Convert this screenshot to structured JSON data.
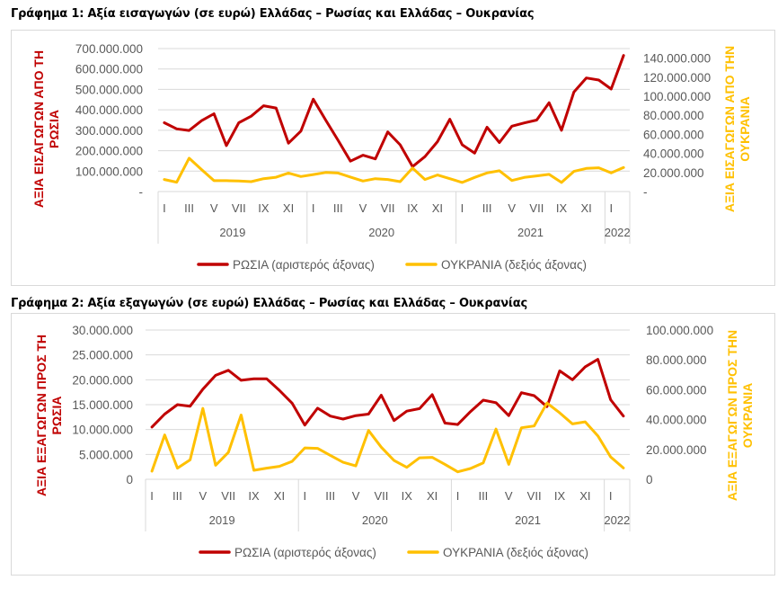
{
  "colors": {
    "russia": "#c00000",
    "ukraine": "#ffc000",
    "grid": "#d9d9d9",
    "text": "#595959"
  },
  "chart_data": [
    {
      "type": "line",
      "title": "Γράφημα 1: Αξία εισαγωγών (σε ευρώ) Ελλάδας – Ρωσίας και Ελλάδας – Ουκρανίας",
      "ylabel_left_lines": [
        "ΑΞΙΑ ΕΙΣΑΓΩΓΩΝ ΑΠΟ ΤΗ",
        "ΡΩΣΙΑ"
      ],
      "ylabel_right_lines": [
        "ΑΞΙΑ ΕΙΣΑΓΩΓΩΝ ΑΠΟ ΤΗΝ",
        "ΟΥΚΡΑΝΙΑ"
      ],
      "ylim_left": [
        0,
        700000000
      ],
      "ylim_right": [
        0,
        150000000
      ],
      "yticks_left": [
        "-",
        "100.000.000",
        "200.000.000",
        "300.000.000",
        "400.000.000",
        "500.000.000",
        "600.000.000",
        "700.000.000"
      ],
      "yticks_right": [
        "-",
        "20.000.000",
        "40.000.000",
        "60.000.000",
        "80.000.000",
        "100.000.000",
        "120.000.000",
        "140.000.000"
      ],
      "yticks_right_values": [
        0,
        20000000,
        40000000,
        60000000,
        80000000,
        100000000,
        120000000,
        140000000
      ],
      "month_labels": [
        "I",
        "",
        "III",
        "",
        "V",
        "",
        "VII",
        "",
        "IX",
        "",
        "XI",
        "",
        "I",
        "",
        "III",
        "",
        "V",
        "",
        "VII",
        "",
        "IX",
        "",
        "XI",
        "",
        "I",
        "",
        "III",
        "",
        "V",
        "",
        "VII",
        "",
        "IX",
        "",
        "XI",
        "",
        "I",
        ""
      ],
      "years": [
        {
          "label": "2019",
          "months": 12
        },
        {
          "label": "2020",
          "months": 12
        },
        {
          "label": "2021",
          "months": 12
        },
        {
          "label": "2022",
          "months": 2
        }
      ],
      "grid": true,
      "legend_position": "bottom",
      "series": [
        {
          "name": "ΡΩΣΙΑ (αριστερός άξονας)",
          "axis": "left",
          "color": "#c00000",
          "values": [
            337000000,
            307000000,
            299000000,
            347000000,
            381000000,
            225000000,
            337000000,
            369000000,
            420000000,
            409000000,
            237000000,
            296000000,
            452000000,
            350000000,
            251000000,
            149000000,
            178000000,
            160000000,
            292000000,
            229000000,
            122000000,
            171000000,
            244000000,
            354000000,
            229000000,
            188000000,
            315000000,
            240000000,
            320000000,
            336000000,
            350000000,
            435000000,
            300000000,
            487000000,
            556000000,
            546000000,
            502000000,
            666000000
          ]
        },
        {
          "name": "ΟΥΚΡΑΝΙΑ (δεξιός άξονας)",
          "axis": "right",
          "color": "#ffc000",
          "values": [
            12600000,
            9800000,
            35000000,
            23000000,
            11400000,
            11400000,
            11000000,
            10400000,
            13500000,
            15000000,
            19400000,
            15800000,
            17800000,
            20000000,
            19400000,
            15200000,
            11000000,
            13500000,
            12600000,
            10400000,
            24600000,
            12600000,
            17400000,
            13500000,
            9500000,
            14800000,
            19500000,
            21800000,
            11600000,
            14800000,
            16400000,
            18000000,
            9500000,
            21100000,
            24200000,
            24900000,
            19500000,
            25200000
          ]
        }
      ]
    },
    {
      "type": "line",
      "title": "Γράφημα 2: Αξία εξαγωγών (σε ευρώ) Ελλάδας – Ρωσίας και Ελλάδας – Ουκρανίας",
      "ylabel_left_lines": [
        "ΑΞΙΑ ΕΞΑΓΩΓΩΝ ΠΡΟΣ ΤΗ",
        "ΡΩΣΙΑ"
      ],
      "ylabel_right_lines": [
        "ΑΞΙΑ ΕΞΑΓΩΓΩΝ ΠΡΟΣ ΤΗΝ",
        "ΟΥΚΡΑΝΙΑ"
      ],
      "ylim_left": [
        0,
        30000000
      ],
      "ylim_right": [
        0,
        100000000
      ],
      "yticks_left": [
        "0",
        "5.000.000",
        "10.000.000",
        "15.000.000",
        "20.000.000",
        "25.000.000",
        "30.000.000"
      ],
      "yticks_right": [
        "0",
        "20.000.000",
        "40.000.000",
        "60.000.000",
        "80.000.000",
        "100.000.000"
      ],
      "yticks_right_values": [
        0,
        20000000,
        40000000,
        60000000,
        80000000,
        100000000
      ],
      "month_labels": [
        "I",
        "",
        "III",
        "",
        "V",
        "",
        "VII",
        "",
        "IX",
        "",
        "XI",
        "",
        "I",
        "",
        "III",
        "",
        "V",
        "",
        "VII",
        "",
        "IX",
        "",
        "XI",
        "",
        "I",
        "",
        "III",
        "",
        "V",
        "",
        "VII",
        "",
        "IX",
        "",
        "XI",
        "",
        "I",
        ""
      ],
      "years": [
        {
          "label": "2019",
          "months": 12
        },
        {
          "label": "2020",
          "months": 12
        },
        {
          "label": "2021",
          "months": 12
        },
        {
          "label": "2022",
          "months": 2
        }
      ],
      "grid": true,
      "legend_position": "bottom",
      "series": [
        {
          "name": "ΡΩΣΙΑ (αριστερός άξονας)",
          "axis": "left",
          "color": "#c00000",
          "values": [
            10500000,
            13100000,
            15000000,
            14700000,
            18100000,
            20900000,
            21900000,
            19900000,
            20200000,
            20200000,
            17900000,
            15300000,
            10900000,
            14300000,
            12700000,
            12100000,
            12800000,
            13100000,
            16900000,
            11800000,
            13700000,
            14200000,
            17000000,
            11300000,
            11000000,
            13600000,
            15900000,
            15400000,
            12800000,
            17400000,
            16800000,
            14600000,
            21800000,
            20000000,
            22600000,
            24100000,
            16000000,
            12700000
          ]
        },
        {
          "name": "ΟΥΚΡΑΝΙΑ (δεξιός άξονας)",
          "axis": "right",
          "color": "#ffc000",
          "values": [
            5400000,
            29700000,
            7500000,
            13000000,
            47500000,
            9400000,
            18000000,
            43100000,
            6000000,
            7500000,
            8700000,
            12000000,
            21000000,
            20700000,
            16000000,
            11400000,
            9000000,
            32700000,
            21500000,
            12600000,
            8000000,
            14400000,
            14700000,
            10000000,
            5000000,
            7200000,
            11000000,
            33700000,
            10000000,
            34500000,
            35700000,
            51100000,
            44500000,
            37100000,
            38500000,
            29100000,
            15000000,
            7600000
          ]
        }
      ]
    }
  ]
}
